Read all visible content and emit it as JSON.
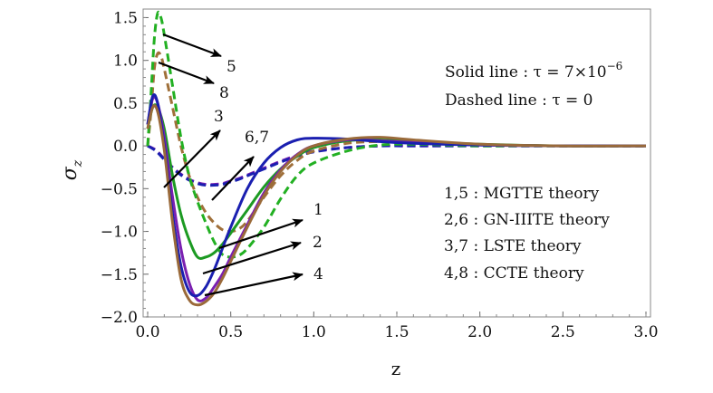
{
  "chart_data": {
    "type": "line",
    "xlabel": "z",
    "ylabel": "σ",
    "ylabel_sub": "z",
    "xlim": [
      0,
      3.0
    ],
    "ylim": [
      -2.0,
      1.6
    ],
    "x_ticks": [
      "0.0",
      "0.5",
      "1.0",
      "1.5",
      "2.0",
      "2.5",
      "3.0"
    ],
    "y_ticks": [
      "1.5",
      "1.0",
      "0.5",
      "0.0",
      "−0.5",
      "−1.0",
      "−1.5",
      "−2.0"
    ],
    "notes": {
      "solid": "Solid line : τ = 7×10",
      "solid_exp": "−6",
      "dashed": "Dashed line : τ = 0"
    },
    "legend": [
      "1,5 : MGTTE theory",
      "2,6 : GN-IIITE theory",
      "3,7 : LSTE theory",
      "4,8 : CCTE theory"
    ],
    "series": [
      {
        "label": "1",
        "color": "#1c9a22",
        "dash": false,
        "x": [
          0,
          0.03,
          0.06,
          0.1,
          0.15,
          0.2,
          0.25,
          0.3,
          0.35,
          0.4,
          0.45,
          0.5,
          0.6,
          0.7,
          0.8,
          0.9,
          1.0,
          1.2,
          1.4,
          1.6,
          2.0,
          2.5,
          3.0
        ],
        "y": [
          0.2,
          0.45,
          0.45,
          0.2,
          -0.35,
          -0.8,
          -1.1,
          -1.3,
          -1.3,
          -1.25,
          -1.15,
          -1.02,
          -0.75,
          -0.48,
          -0.27,
          -0.12,
          -0.02,
          0.06,
          0.07,
          0.05,
          0.02,
          0.0,
          0.0
        ]
      },
      {
        "label": "2",
        "color": "#7a1fb0",
        "dash": false,
        "x": [
          0,
          0.03,
          0.06,
          0.1,
          0.15,
          0.2,
          0.25,
          0.3,
          0.35,
          0.4,
          0.45,
          0.5,
          0.6,
          0.7,
          0.8,
          0.9,
          1.0,
          1.2,
          1.4,
          1.6,
          2.0,
          2.5,
          3.0
        ],
        "y": [
          0.25,
          0.55,
          0.5,
          0.1,
          -0.6,
          -1.2,
          -1.6,
          -1.8,
          -1.78,
          -1.65,
          -1.5,
          -1.3,
          -0.92,
          -0.55,
          -0.28,
          -0.1,
          0.0,
          0.07,
          0.06,
          0.04,
          0.01,
          0.0,
          0.0
        ]
      },
      {
        "label": "3",
        "color": "#1a1fb0",
        "dash": false,
        "x": [
          0,
          0.03,
          0.06,
          0.1,
          0.15,
          0.2,
          0.25,
          0.3,
          0.35,
          0.4,
          0.45,
          0.5,
          0.6,
          0.7,
          0.8,
          0.9,
          1.0,
          1.2,
          1.4,
          1.6,
          2.0,
          2.5,
          3.0
        ],
        "y": [
          0.25,
          0.58,
          0.5,
          0.0,
          -0.8,
          -1.4,
          -1.7,
          -1.75,
          -1.65,
          -1.45,
          -1.2,
          -0.95,
          -0.5,
          -0.2,
          -0.02,
          0.07,
          0.09,
          0.08,
          0.05,
          0.03,
          0.01,
          0.0,
          0.0
        ]
      },
      {
        "label": "4",
        "color": "#9a6a3a",
        "dash": false,
        "x": [
          0,
          0.03,
          0.06,
          0.1,
          0.15,
          0.2,
          0.25,
          0.3,
          0.35,
          0.4,
          0.45,
          0.5,
          0.6,
          0.7,
          0.8,
          0.9,
          1.0,
          1.2,
          1.4,
          1.6,
          2.0,
          2.5,
          3.0
        ],
        "y": [
          0.2,
          0.45,
          0.4,
          -0.05,
          -0.9,
          -1.55,
          -1.8,
          -1.86,
          -1.82,
          -1.72,
          -1.55,
          -1.35,
          -0.95,
          -0.58,
          -0.3,
          -0.11,
          0.0,
          0.08,
          0.1,
          0.07,
          0.02,
          0.0,
          0.0
        ]
      },
      {
        "label": "5",
        "color": "#22b022",
        "dash": true,
        "x": [
          0,
          0.02,
          0.04,
          0.06,
          0.08,
          0.1,
          0.15,
          0.2,
          0.25,
          0.3,
          0.35,
          0.4,
          0.45,
          0.5,
          0.55,
          0.6,
          0.7,
          0.8,
          0.9,
          1.0,
          1.2,
          1.4,
          1.6,
          1.8,
          2.0,
          2.5,
          3.0
        ],
        "y": [
          0.0,
          0.6,
          1.25,
          1.55,
          1.5,
          1.3,
          0.7,
          0.1,
          -0.35,
          -0.65,
          -0.9,
          -1.12,
          -1.27,
          -1.3,
          -1.28,
          -1.2,
          -0.95,
          -0.62,
          -0.35,
          -0.2,
          -0.06,
          0.01,
          0.02,
          0.01,
          0.0,
          0.0,
          0.0
        ]
      },
      {
        "label": "6",
        "color": "#7a1fb0",
        "dash": true,
        "x": [
          0,
          0.05,
          0.1,
          0.15,
          0.2,
          0.25,
          0.3,
          0.35,
          0.4,
          0.45,
          0.5,
          0.55,
          0.6,
          0.7,
          0.8,
          0.9,
          1.0,
          1.2,
          1.4,
          1.6,
          2.0,
          2.5,
          3.0
        ],
        "y": [
          0.0,
          -0.05,
          -0.15,
          -0.25,
          -0.33,
          -0.39,
          -0.43,
          -0.45,
          -0.45,
          -0.44,
          -0.41,
          -0.38,
          -0.34,
          -0.26,
          -0.18,
          -0.11,
          -0.06,
          -0.02,
          0.0,
          0.0,
          0.0,
          0.0,
          0.0
        ]
      },
      {
        "label": "7",
        "color": "#1a1fb0",
        "dash": true,
        "x": [
          0,
          0.05,
          0.1,
          0.15,
          0.2,
          0.25,
          0.3,
          0.35,
          0.4,
          0.45,
          0.5,
          0.55,
          0.6,
          0.7,
          0.8,
          0.9,
          1.0,
          1.2,
          1.4,
          1.6,
          2.0,
          2.5,
          3.0
        ],
        "y": [
          0.0,
          -0.06,
          -0.16,
          -0.26,
          -0.34,
          -0.4,
          -0.44,
          -0.46,
          -0.46,
          -0.45,
          -0.42,
          -0.39,
          -0.35,
          -0.27,
          -0.19,
          -0.12,
          -0.07,
          -0.02,
          0.0,
          0.0,
          0.0,
          0.0,
          0.0
        ]
      },
      {
        "label": "8",
        "color": "#a0703a",
        "dash": true,
        "x": [
          0,
          0.02,
          0.04,
          0.06,
          0.08,
          0.1,
          0.15,
          0.2,
          0.25,
          0.3,
          0.35,
          0.4,
          0.45,
          0.5,
          0.55,
          0.6,
          0.7,
          0.8,
          0.9,
          1.0,
          1.2,
          1.4,
          1.6,
          1.8,
          2.0,
          2.5,
          3.0
        ],
        "y": [
          0.0,
          0.4,
          0.9,
          1.08,
          1.05,
          0.9,
          0.45,
          0.0,
          -0.35,
          -0.6,
          -0.78,
          -0.9,
          -0.98,
          -1.0,
          -0.97,
          -0.88,
          -0.6,
          -0.35,
          -0.17,
          -0.06,
          0.03,
          0.05,
          0.04,
          0.02,
          0.01,
          0.0,
          0.0
        ]
      }
    ],
    "annotations": [
      "5",
      "8",
      "3",
      "6,7",
      "1",
      "2",
      "4"
    ]
  }
}
